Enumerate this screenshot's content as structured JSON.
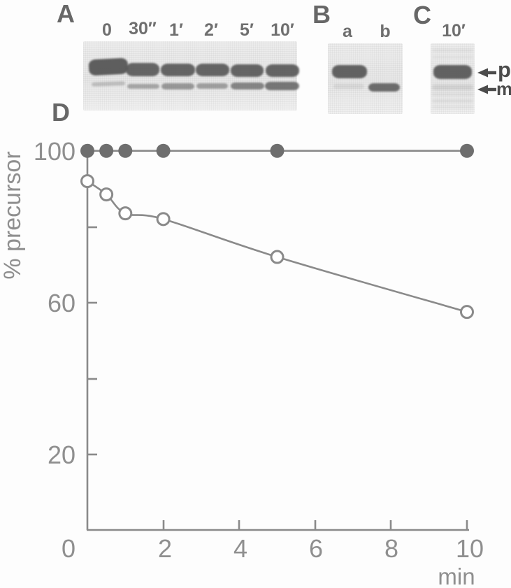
{
  "panels": {
    "a": {
      "label": "A",
      "lane_labels": [
        "0",
        "30″",
        "1′",
        "2′",
        "5′",
        "10′"
      ]
    },
    "b": {
      "label": "B",
      "lane_labels": [
        "a",
        "b"
      ]
    },
    "c": {
      "label": "C",
      "lane_labels": [
        "10′"
      ]
    },
    "d": {
      "label": "D"
    }
  },
  "annotations": {
    "precursor": "p",
    "mature": "m"
  },
  "chart_labels": {
    "yticks": [
      "100",
      "60",
      "20"
    ],
    "xticks": [
      "0",
      "2",
      "4",
      "6",
      "8",
      "10"
    ],
    "xlabel": "min",
    "ylabel": "% precursor"
  },
  "chart_data": {
    "type": "line",
    "x": [
      0,
      0.5,
      1,
      2,
      5,
      10
    ],
    "series": [
      {
        "name": "filled-circles",
        "marker": "filled-circle",
        "values": [
          100,
          100,
          100,
          100,
          100,
          100
        ]
      },
      {
        "name": "open-circles",
        "marker": "open-circle",
        "values": [
          92,
          88.5,
          83.5,
          82,
          72,
          57.5
        ]
      }
    ],
    "title": "",
    "xlabel": "min",
    "ylabel": "% precursor",
    "xlim": [
      0,
      10.3
    ],
    "ylim": [
      0,
      105
    ],
    "xticks_marked": [
      2,
      4,
      6,
      8,
      10
    ],
    "yticks_marked": [
      20,
      40,
      60,
      80,
      100
    ],
    "ytick_labels_shown": [
      100,
      60,
      20
    ],
    "xtick_labels_shown": [
      0,
      2,
      4,
      6,
      8,
      10
    ],
    "grid": false,
    "legend": false
  },
  "colors": {
    "ink_dark": "#4c4c4c",
    "ink_medium": "#6e6e6e",
    "line_gray": "#8a8a8a",
    "gel_background": "#ececec",
    "band": "#575757"
  }
}
